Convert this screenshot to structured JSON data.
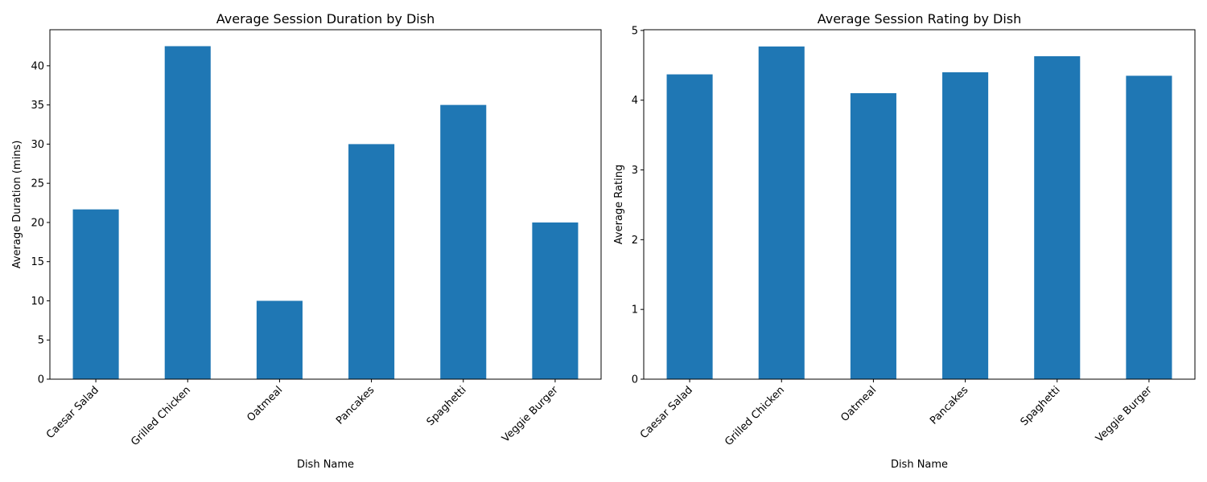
{
  "figure": {
    "background": "#ffffff"
  },
  "chart_data": [
    {
      "type": "bar",
      "title": "Average Session Duration by Dish",
      "xlabel": "Dish Name",
      "ylabel": "Average Duration (mins)",
      "categories": [
        "Caesar Salad",
        "Grilled Chicken",
        "Oatmeal",
        "Pancakes",
        "Spaghetti",
        "Veggie Burger"
      ],
      "values": [
        21.67,
        42.5,
        10.0,
        30.0,
        35.0,
        20.0
      ],
      "ylim": [
        0,
        44.6
      ],
      "yticks": [
        0,
        5,
        10,
        15,
        20,
        25,
        30,
        35,
        40
      ],
      "bar_color": "#1f77b4",
      "grid": false,
      "legend": false
    },
    {
      "type": "bar",
      "title": "Average Session Rating by Dish",
      "xlabel": "Dish Name",
      "ylabel": "Average Rating",
      "categories": [
        "Caesar Salad",
        "Grilled Chicken",
        "Oatmeal",
        "Pancakes",
        "Spaghetti",
        "Veggie Burger"
      ],
      "values": [
        4.37,
        4.77,
        4.1,
        4.4,
        4.63,
        4.35
      ],
      "ylim": [
        0,
        5.01
      ],
      "yticks": [
        0,
        1,
        2,
        3,
        4,
        5
      ],
      "bar_color": "#1f77b4",
      "grid": false,
      "legend": false
    }
  ]
}
